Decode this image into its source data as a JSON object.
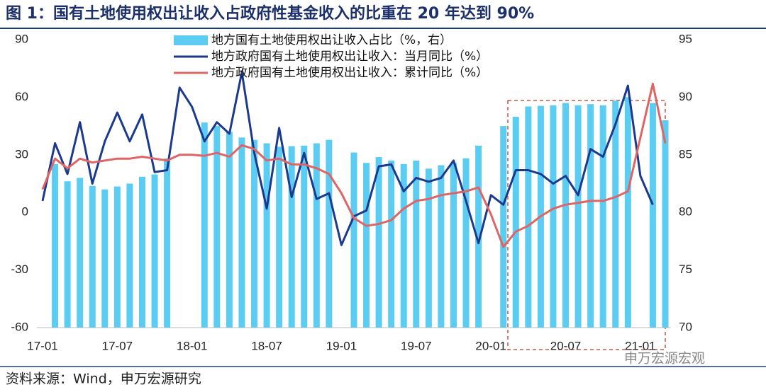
{
  "chart_data": {
    "type": "bar-line",
    "title": "图 1：国有土地使用权出让收入占政府性基金收入的比重在 20 年达到 90%",
    "source": "资料来源：Wind，申万宏源研究",
    "watermark": "申万宏源宏观",
    "categories": [
      "17-01",
      null,
      null,
      null,
      null,
      null,
      "17-07",
      null,
      null,
      null,
      null,
      null,
      "18-01",
      null,
      null,
      null,
      null,
      null,
      "18-07",
      null,
      null,
      null,
      null,
      null,
      "19-01",
      null,
      null,
      null,
      null,
      null,
      "19-07",
      null,
      null,
      null,
      null,
      null,
      "20-01",
      null,
      null,
      null,
      null,
      null,
      "20-07",
      null,
      null,
      null,
      null,
      null,
      "21-01",
      null,
      null
    ],
    "ylim": [
      -60,
      90
    ],
    "yticks": [
      -60,
      -30,
      0,
      30,
      60,
      90
    ],
    "y2lim": [
      70,
      95
    ],
    "y2ticks": [
      70,
      75,
      80,
      85,
      90,
      95
    ],
    "series": [
      {
        "name": "地方国有土地使用权出让收入占比（%，右）",
        "type": "bar",
        "axis": "y2",
        "color": "#5ccdf2",
        "values": [
          null,
          84.2,
          82.7,
          83,
          82.3,
          82,
          82.25,
          82.5,
          83.1,
          83.3,
          84.7,
          null,
          null,
          87.8,
          87.5,
          87,
          86.5,
          86.3,
          86,
          85.7,
          85.75,
          85.8,
          86,
          86.3,
          null,
          85.2,
          84.3,
          84.8,
          84.5,
          84.2,
          84.5,
          83.8,
          84.1,
          84.3,
          84.7,
          85.8,
          null,
          87.5,
          88.3,
          89.2,
          89.25,
          89.3,
          89.5,
          89.3,
          89.4,
          89.3,
          89.7,
          90,
          null,
          89.5,
          88
        ]
      },
      {
        "name": "地方政府国有土地使用权出让收入：当月同比（%）",
        "type": "line",
        "color": "#1b3a8e",
        "values": [
          6,
          36,
          20,
          47,
          15,
          37,
          52,
          37,
          51,
          21,
          22,
          65,
          55,
          37,
          47,
          41,
          73,
          31,
          2,
          44,
          8,
          31,
          7,
          10,
          -17,
          -2,
          1,
          24,
          25,
          11,
          18,
          16,
          18,
          27,
          6,
          -16,
          9,
          4,
          22,
          22,
          20,
          15,
          19,
          9,
          33,
          29,
          46,
          66,
          19,
          4,
          null
        ]
      },
      {
        "name": "地方政府国有土地使用权出让收入：累计同比（%）",
        "type": "line",
        "color": "#e06464",
        "values": [
          12,
          28,
          23,
          28,
          26,
          27,
          28,
          28,
          29,
          28,
          27,
          30,
          30,
          29.5,
          31,
          29,
          35,
          33,
          27,
          28,
          25,
          25,
          23,
          20,
          10,
          -3,
          -7,
          -6,
          -4,
          2,
          6,
          7,
          9,
          10,
          11,
          13,
          -1,
          -18,
          -10,
          -7,
          -2,
          2,
          4,
          5,
          6,
          6,
          8,
          11,
          39,
          67,
          36
        ]
      }
    ]
  }
}
